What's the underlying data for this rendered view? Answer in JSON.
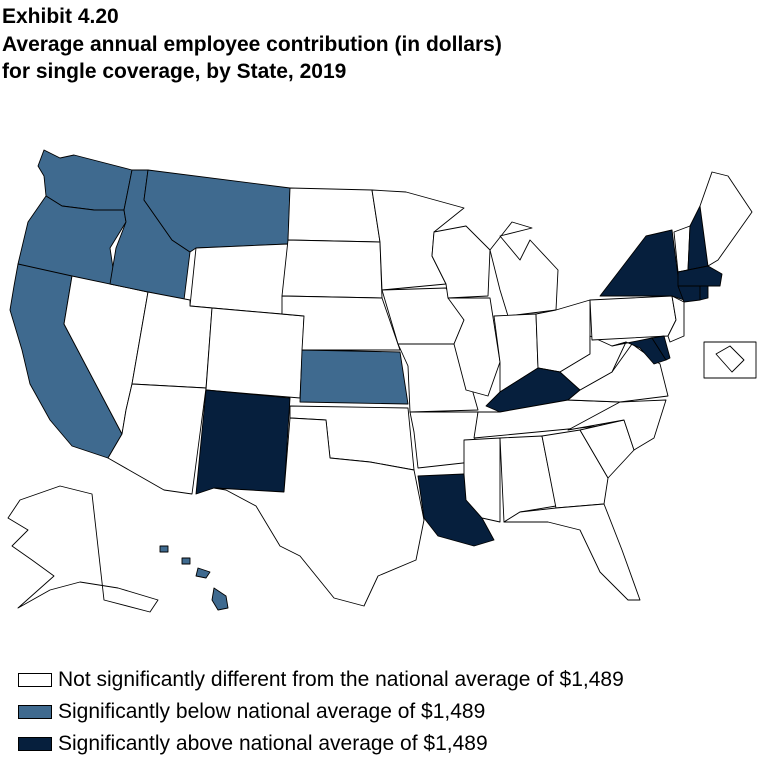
{
  "header": {
    "exhibit": "Exhibit 4.20",
    "title_line1": "Average annual employee contribution (in dollars)",
    "title_line2": "for single coverage, by State, 2019"
  },
  "colors": {
    "not_significant": "#ffffff",
    "below": "#3f6a8f",
    "above": "#061f3d",
    "border": "#000000"
  },
  "legend": [
    {
      "key": "not_significant",
      "label": "Not significantly different from the national average of $1,489"
    },
    {
      "key": "below",
      "label": "Significantly below national average of $1,489"
    },
    {
      "key": "above",
      "label": "Significantly above national average of $1,489"
    }
  ],
  "map_data": {
    "national_average": 1489,
    "states": {
      "WA": "below",
      "OR": "below",
      "CA": "below",
      "ID": "below",
      "MT": "below",
      "KS": "below",
      "HI": "below",
      "NM": "above",
      "LA": "above",
      "KY": "above",
      "NY": "above",
      "NH": "above",
      "MA": "above",
      "CT": "above",
      "RI": "above",
      "MD": "above",
      "DE": "above",
      "NV": "not_significant",
      "AZ": "not_significant",
      "UT": "not_significant",
      "WY": "not_significant",
      "CO": "not_significant",
      "ND": "not_significant",
      "SD": "not_significant",
      "NE": "not_significant",
      "OK": "not_significant",
      "TX": "not_significant",
      "MN": "not_significant",
      "IA": "not_significant",
      "MO": "not_significant",
      "AR": "not_significant",
      "WI": "not_significant",
      "IL": "not_significant",
      "MI": "not_significant",
      "IN": "not_significant",
      "OH": "not_significant",
      "TN": "not_significant",
      "MS": "not_significant",
      "AL": "not_significant",
      "GA": "not_significant",
      "FL": "not_significant",
      "SC": "not_significant",
      "NC": "not_significant",
      "VA": "not_significant",
      "WV": "not_significant",
      "PA": "not_significant",
      "NJ": "not_significant",
      "VT": "not_significant",
      "ME": "not_significant",
      "AK": "not_significant",
      "DC": "not_significant"
    }
  }
}
